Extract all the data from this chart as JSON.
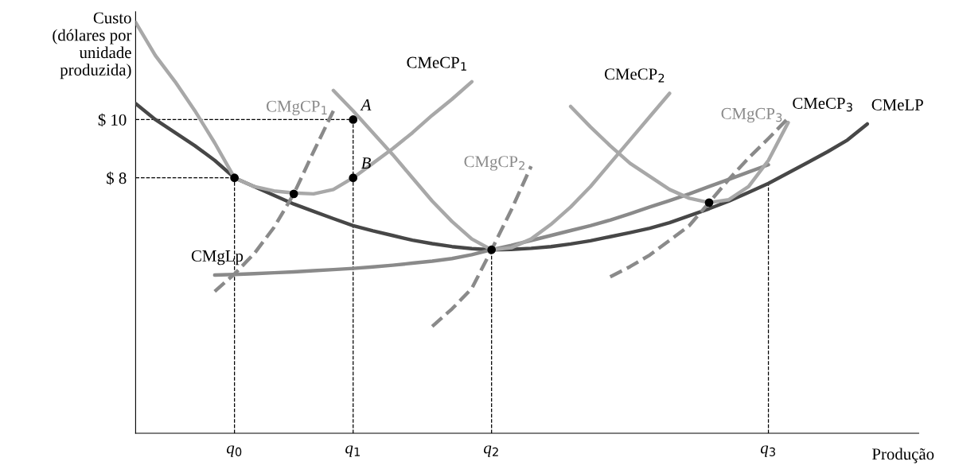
{
  "chart_data": {
    "type": "line",
    "ylabel": "Custo\n(dólares por\nunidade\nproduzida)",
    "xlabel": "Produção",
    "categories": [
      null,
      null,
      null,
      null,
      null,
      "q$_{0}$",
      null,
      null,
      null,
      null,
      null,
      "q$_{1}$",
      null,
      null,
      null,
      null,
      null,
      null,
      "q$_{2}$",
      null,
      null,
      null,
      null,
      null,
      null,
      null,
      null,
      null,
      null,
      null,
      null,
      null,
      "q$_{3}$",
      null,
      null,
      null,
      null,
      null,
      null,
      null
    ],
    "ylim": [
      -0.77,
      13.7
    ],
    "yticks": [
      {
        "value": 8,
        "label": "$ 8"
      },
      {
        "value": 10,
        "label": "$ 10"
      }
    ],
    "grid": false,
    "legend": false,
    "marker": "none",
    "annotations": [
      {
        "text": "A",
        "x": "q$_{1}$",
        "y": 10
      },
      {
        "text": "B",
        "x": "q$_{1}$",
        "y": 8
      }
    ],
    "ref_lines": [
      {
        "axis": "x",
        "value": "q$_{0}$",
        "color": "#000000",
        "line_style": "dashed"
      },
      {
        "axis": "x",
        "value": "q$_{1}$",
        "color": "#000000",
        "line_style": "dashed"
      },
      {
        "axis": "x",
        "value": "q$_{2}$",
        "color": "#000000",
        "line_style": "dashed"
      },
      {
        "axis": "x",
        "value": "q$_{3}$",
        "color": "#000000",
        "line_style": "dashed"
      }
    ],
    "series": [
      {
        "name": "CMeLP",
        "color": "#474747",
        "line_style": "solid",
        "values": [
          10.55,
          10.0,
          9.55,
          9.1,
          8.6,
          8.0,
          7.7,
          7.4,
          7.1,
          6.85,
          6.6,
          6.36,
          6.18,
          6.02,
          5.86,
          5.74,
          5.64,
          5.57,
          5.53,
          5.54,
          5.58,
          5.64,
          5.73,
          5.84,
          5.98,
          6.12,
          6.27,
          6.46,
          6.7,
          6.94,
          7.2,
          7.5,
          7.81,
          8.17,
          8.53,
          8.9,
          9.3,
          9.85,
          null,
          null
        ]
      },
      {
        "name": "CMgLp",
        "color": "#8a8a8a",
        "line_style": "solid",
        "values": [
          null,
          null,
          null,
          null,
          4.66,
          4.68,
          4.71,
          4.74,
          4.77,
          4.81,
          4.85,
          4.89,
          4.94,
          5.0,
          5.07,
          5.14,
          5.23,
          5.36,
          5.53,
          5.68,
          5.85,
          6.02,
          6.19,
          6.36,
          6.55,
          6.77,
          7.0,
          7.22,
          7.45,
          7.7,
          7.95,
          8.2,
          8.45,
          null,
          null,
          null,
          null,
          null,
          null,
          null
        ]
      },
      {
        "name": "CMeCP$_{1}$",
        "color": "#a8a8a8",
        "line_style": "solid",
        "values": [
          13.34,
          12.2,
          11.3,
          10.3,
          9.2,
          8.0,
          7.7,
          7.55,
          7.48,
          7.45,
          7.6,
          8.0,
          8.5,
          9.0,
          9.55,
          10.15,
          10.7,
          11.3,
          null,
          null,
          null,
          null,
          null,
          null,
          null,
          null,
          null,
          null,
          null,
          null,
          null,
          null,
          null,
          null,
          null,
          null,
          null,
          null,
          null,
          null
        ]
      },
      {
        "name": "CMgCP$_{1}$",
        "color": "#8a8a8a",
        "line_style": "dashed",
        "values": [
          null,
          null,
          null,
          null,
          4.1,
          4.7,
          5.4,
          6.3,
          7.45,
          8.9,
          10.3,
          null,
          null,
          null,
          null,
          null,
          null,
          null,
          null,
          null,
          null,
          null,
          null,
          null,
          null,
          null,
          null,
          null,
          null,
          null,
          null,
          null,
          null,
          null,
          null,
          null,
          null,
          null,
          null,
          null
        ]
      },
      {
        "name": "CMeCP$_{2}$",
        "color": "#a8a8a8",
        "line_style": "solid",
        "values": [
          null,
          null,
          null,
          null,
          null,
          null,
          null,
          null,
          null,
          null,
          11.0,
          10.3,
          9.55,
          8.8,
          8.0,
          7.2,
          6.5,
          5.9,
          5.53,
          5.6,
          5.9,
          6.4,
          7.0,
          7.7,
          8.5,
          9.3,
          10.1,
          10.9,
          null,
          null,
          null,
          null,
          null,
          null,
          null,
          null,
          null,
          null,
          null,
          null
        ]
      },
      {
        "name": "CMgCP$_{2}$",
        "color": "#8a8a8a",
        "line_style": "dashed",
        "values": [
          null,
          null,
          null,
          null,
          null,
          null,
          null,
          null,
          null,
          null,
          null,
          null,
          null,
          null,
          null,
          2.9,
          3.5,
          4.2,
          5.53,
          6.9,
          8.4,
          null,
          null,
          null,
          null,
          null,
          null,
          null,
          null,
          null,
          null,
          null,
          null,
          null,
          null,
          null,
          null,
          null,
          null,
          null
        ]
      },
      {
        "name": "CMeCP$_{3}$",
        "color": "#a8a8a8",
        "line_style": "solid",
        "values": [
          null,
          null,
          null,
          null,
          null,
          null,
          null,
          null,
          null,
          null,
          null,
          null,
          null,
          null,
          null,
          null,
          null,
          null,
          null,
          null,
          null,
          null,
          10.45,
          9.75,
          9.1,
          8.5,
          8.05,
          7.6,
          7.3,
          7.15,
          7.25,
          7.7,
          8.6,
          9.9,
          null,
          null,
          null,
          null,
          null,
          null
        ]
      },
      {
        "name": "CMgCP$_{3}$",
        "color": "#8a8a8a",
        "line_style": "dashed",
        "values": [
          null,
          null,
          null,
          null,
          null,
          null,
          null,
          null,
          null,
          null,
          null,
          null,
          null,
          null,
          null,
          null,
          null,
          null,
          null,
          null,
          null,
          null,
          null,
          null,
          4.6,
          4.95,
          5.35,
          5.85,
          6.36,
          7.15,
          7.95,
          8.68,
          9.35,
          10.05,
          null,
          null,
          null,
          null,
          null,
          null
        ]
      },
      {
        "color": "#000000",
        "line_style": "dashed",
        "values": [
          10,
          10,
          10,
          10,
          10,
          10,
          10,
          10,
          10,
          10,
          10,
          10,
          null,
          null,
          null,
          null,
          null,
          null,
          null,
          null,
          null,
          null,
          null,
          null,
          null,
          null,
          null,
          null,
          null,
          null,
          null,
          null,
          null,
          null,
          null,
          null,
          null,
          null,
          null,
          null
        ]
      },
      {
        "color": "#000000",
        "line_style": "dashed",
        "values": [
          8,
          8,
          8,
          8,
          8,
          8,
          null,
          null,
          null,
          null,
          null,
          null,
          null,
          null,
          null,
          null,
          null,
          null,
          null,
          null,
          null,
          null,
          null,
          null,
          null,
          null,
          null,
          null,
          null,
          null,
          null,
          null,
          null,
          null,
          null,
          null,
          null,
          null,
          null,
          null
        ]
      },
      {
        "type": "scatter",
        "color": "#000000",
        "marker": "circle",
        "values": [
          null,
          null,
          null,
          null,
          null,
          8,
          null,
          null,
          7.45,
          null,
          null,
          10,
          null,
          null,
          null,
          null,
          null,
          null,
          5.53,
          null,
          null,
          null,
          null,
          null,
          null,
          null,
          null,
          null,
          null,
          7.15,
          null,
          null,
          null,
          null,
          null,
          null,
          null,
          null,
          null,
          null
        ]
      },
      {
        "type": "scatter",
        "color": "#000000",
        "marker": "circle",
        "values": [
          null,
          null,
          null,
          null,
          null,
          null,
          null,
          null,
          null,
          null,
          null,
          8,
          null,
          null,
          null,
          null,
          null,
          null,
          null,
          null,
          null,
          null,
          null,
          null,
          null,
          null,
          null,
          null,
          null,
          null,
          null,
          null,
          null,
          null,
          null,
          null,
          null,
          null,
          null,
          null
        ]
      }
    ]
  }
}
